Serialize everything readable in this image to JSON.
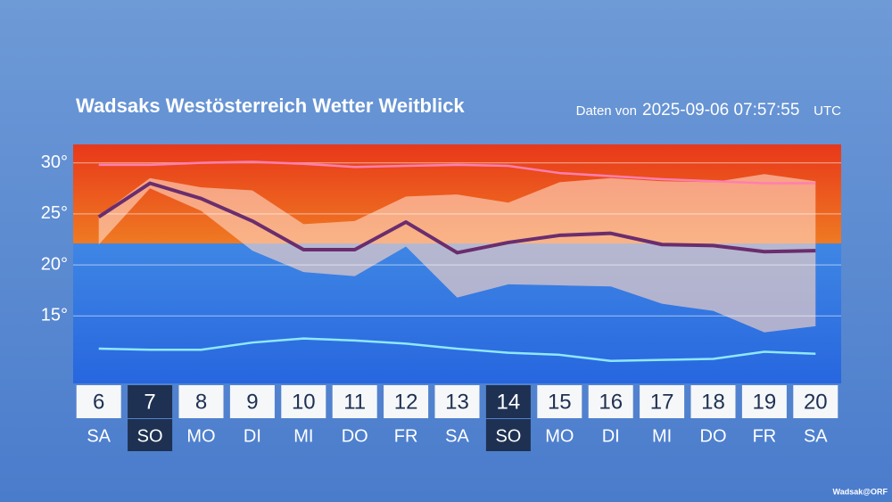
{
  "chart_data": {
    "type": "line",
    "title": "Wadsaks Westösterreich Wetter Weitblick",
    "data_prefix": "Daten von",
    "timestamp": "2025-09-06 07:57:55",
    "timezone": "UTC",
    "credit": "Wadsak@ORF",
    "categories": [
      "6",
      "7",
      "8",
      "9",
      "10",
      "11",
      "12",
      "13",
      "14",
      "15",
      "16",
      "17",
      "18",
      "19",
      "20"
    ],
    "weekdays": [
      "SA",
      "SO",
      "MO",
      "DI",
      "MI",
      "DO",
      "FR",
      "SA",
      "SO",
      "MO",
      "DI",
      "MI",
      "DO",
      "FR",
      "SA"
    ],
    "highlight": [
      false,
      true,
      false,
      false,
      false,
      false,
      false,
      false,
      true,
      false,
      false,
      false,
      false,
      false,
      false
    ],
    "ylim": [
      8.4,
      31.8
    ],
    "yticks": [
      {
        "value": 15,
        "label": "15°"
      },
      {
        "value": 20,
        "label": "20°"
      },
      {
        "value": 25,
        "label": "25°"
      },
      {
        "value": 30,
        "label": "30°"
      }
    ],
    "grid": true,
    "band": {
      "color": "rgba(255,214,196,0.62)",
      "upper": [
        24.8,
        28.5,
        27.6,
        27.3,
        24.0,
        24.3,
        26.7,
        26.9,
        26.1,
        28.1,
        28.5,
        28.2,
        28.1,
        28.9,
        28.2
      ],
      "lower": [
        22.0,
        27.5,
        25.3,
        21.4,
        19.3,
        18.9,
        21.8,
        16.8,
        18.1,
        18.0,
        17.9,
        16.2,
        15.5,
        13.4,
        14.0
      ]
    },
    "series": [
      {
        "color": "#ff7fb0",
        "values": [
          29.8,
          29.8,
          30.0,
          30.1,
          29.9,
          29.6,
          29.7,
          29.8,
          29.7,
          29.0,
          28.7,
          28.4,
          28.2,
          28.0,
          28.0
        ]
      },
      {
        "color": "#6a2d6e",
        "values": [
          24.7,
          28.0,
          26.5,
          24.3,
          21.5,
          21.5,
          24.2,
          21.2,
          22.2,
          22.9,
          23.1,
          22.0,
          21.9,
          21.3,
          21.4
        ]
      },
      {
        "color": "#8fe8ff",
        "values": [
          11.8,
          11.7,
          11.7,
          12.4,
          12.8,
          12.6,
          12.3,
          11.8,
          11.4,
          11.2,
          10.6,
          10.7,
          10.8,
          11.5,
          11.3
        ]
      }
    ]
  }
}
